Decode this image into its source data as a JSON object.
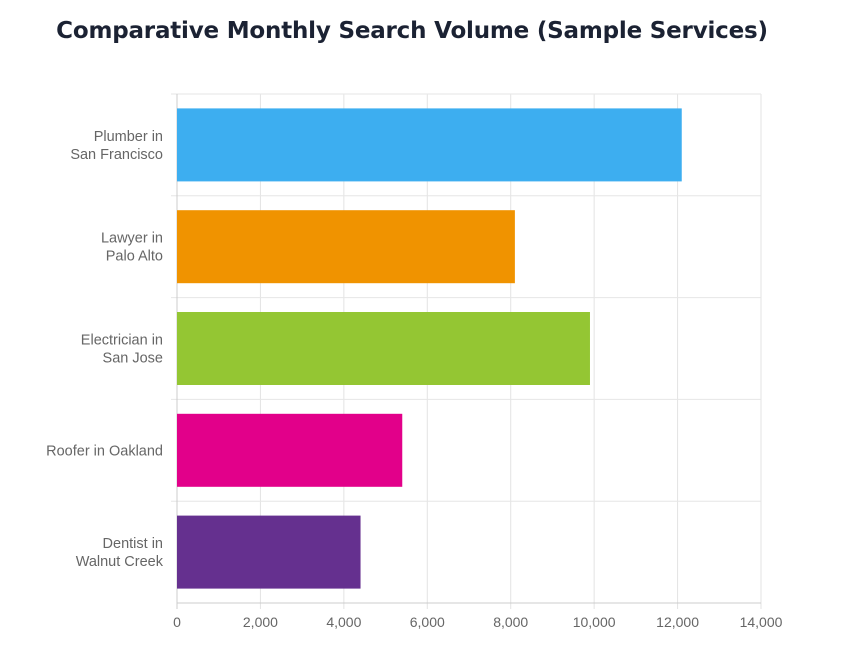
{
  "chart_data": {
    "type": "bar",
    "orientation": "horizontal",
    "title": "Comparative Monthly Search Volume (Sample Services)",
    "categories": [
      [
        "Plumber in",
        "San Francisco"
      ],
      [
        "Lawyer in",
        "Palo Alto"
      ],
      [
        "Electrician in",
        "San Jose"
      ],
      [
        "Roofer in Oakland"
      ],
      [
        "Dentist in",
        "Walnut Creek"
      ]
    ],
    "values": [
      12100,
      8100,
      9900,
      5400,
      4400
    ],
    "colors": [
      "#3daef0",
      "#f09300",
      "#94c633",
      "#e2008a",
      "#65308f"
    ],
    "xlim": [
      0,
      14000
    ],
    "xticks": [
      0,
      2000,
      4000,
      6000,
      8000,
      10000,
      12000,
      14000
    ],
    "xtick_labels": [
      "0",
      "2,000",
      "4,000",
      "6,000",
      "8,000",
      "10,000",
      "12,000",
      "14,000"
    ],
    "xlabel": "",
    "ylabel": "",
    "grid": true,
    "legend": "none"
  }
}
